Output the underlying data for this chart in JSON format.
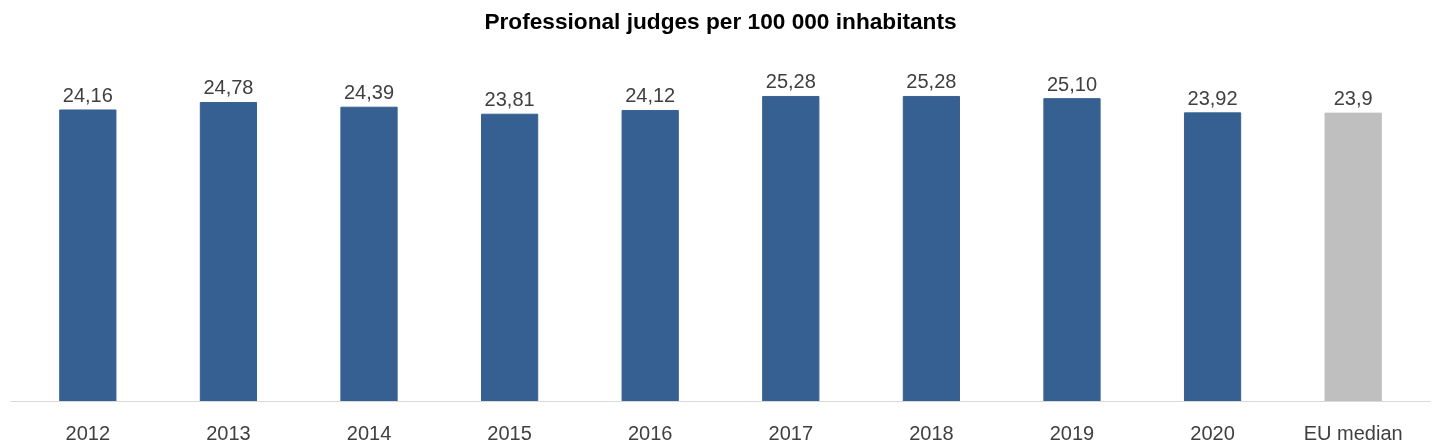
{
  "chart_data": {
    "type": "bar",
    "title": "Professional judges per 100 000 inhabitants",
    "categories": [
      "2012",
      "2013",
      "2014",
      "2015",
      "2016",
      "2017",
      "2018",
      "2019",
      "2020",
      "EU median"
    ],
    "values": [
      24.16,
      24.78,
      24.39,
      23.81,
      24.12,
      25.28,
      25.28,
      25.1,
      23.92,
      23.9
    ],
    "value_labels": [
      "24,16",
      "24,78",
      "24,39",
      "23,81",
      "24,12",
      "25,28",
      "25,28",
      "25,10",
      "23,92",
      "23,9"
    ],
    "colors": [
      "#376092",
      "#376092",
      "#376092",
      "#376092",
      "#376092",
      "#376092",
      "#376092",
      "#376092",
      "#376092",
      "#bfbfbf"
    ],
    "grid": false
  }
}
